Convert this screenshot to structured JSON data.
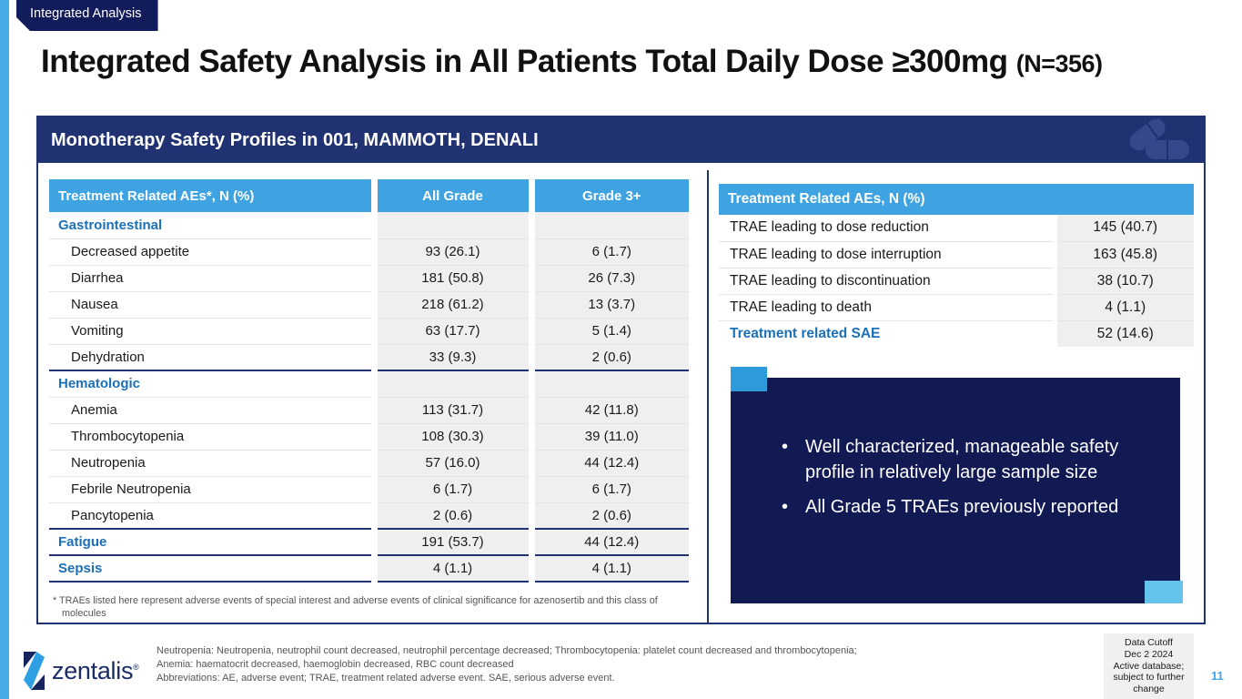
{
  "badge": {
    "label": "Integrated Analysis"
  },
  "title": {
    "main": "Integrated Safety Analysis in All Patients Total Daily Dose ≥300mg",
    "suffix": "(N=356)"
  },
  "panel": {
    "header": "Monotherapy Safety Profiles in 001, MAMMOTH, DENALI",
    "left_table": {
      "columns": [
        "Treatment Related AEs*, N (%)",
        "All Grade",
        "Grade 3+"
      ],
      "rows": [
        {
          "label": "Gastrointestinal",
          "all_grade": "",
          "grade3": "",
          "type": "category"
        },
        {
          "label": "Decreased appetite",
          "all_grade": "93 (26.1)",
          "grade3": "6 (1.7)"
        },
        {
          "label": "Diarrhea",
          "all_grade": "181 (50.8)",
          "grade3": "26 (7.3)"
        },
        {
          "label": "Nausea",
          "all_grade": "218 (61.2)",
          "grade3": "13 (3.7)"
        },
        {
          "label": "Vomiting",
          "all_grade": "63 (17.7)",
          "grade3": "5 (1.4)"
        },
        {
          "label": "Dehydration",
          "all_grade": "33 (9.3)",
          "grade3": "2 (0.6)",
          "rule_below": true
        },
        {
          "label": "Hematologic",
          "all_grade": "",
          "grade3": "",
          "type": "category"
        },
        {
          "label": "Anemia",
          "all_grade": "113 (31.7)",
          "grade3": "42 (11.8)"
        },
        {
          "label": "Thrombocytopenia",
          "all_grade": "108 (30.3)",
          "grade3": "39 (11.0)"
        },
        {
          "label": "Neutropenia",
          "all_grade": "57 (16.0)",
          "grade3": "44 (12.4)"
        },
        {
          "label": "Febrile Neutropenia",
          "all_grade": "6 (1.7)",
          "grade3": "6 (1.7)"
        },
        {
          "label": "Pancytopenia",
          "all_grade": "2 (0.6)",
          "grade3": "2 (0.6)",
          "rule_below": true
        },
        {
          "label": "Fatigue",
          "all_grade": "191 (53.7)",
          "grade3": "44 (12.4)",
          "type": "category",
          "rule_below": true
        },
        {
          "label": "Sepsis",
          "all_grade": "4 (1.1)",
          "grade3": "4 (1.1)",
          "type": "category",
          "rule_below": true
        }
      ],
      "footnote": "* TRAEs listed here represent adverse events of special interest and adverse events of clinical significance for azenosertib and this class of molecules"
    },
    "right_table": {
      "header": "Treatment Related AEs, N (%)",
      "rows": [
        {
          "label": "TRAE leading to dose reduction",
          "value": "145 (40.7)"
        },
        {
          "label": "TRAE leading to dose interruption",
          "value": "163 (45.8)"
        },
        {
          "label": "TRAE leading to discontinuation",
          "value": "38 (10.7)"
        },
        {
          "label": "TRAE leading to death",
          "value": "4 (1.1)"
        },
        {
          "label": "Treatment related SAE",
          "value": "52 (14.6)",
          "type": "highlight"
        }
      ]
    },
    "callout": {
      "bullets": [
        "Well characterized, manageable safety profile in relatively large sample size",
        "All Grade 5 TRAEs previously reported"
      ]
    }
  },
  "footer": {
    "logo_text": "zentalis",
    "logo_trademark": "®",
    "notes": [
      "Neutropenia: Neutropenia, neutrophil count decreased, neutrophil percentage decreased; Thrombocytopenia: platelet count decreased and thrombocytopenia;",
      "Anemia: haematocrit decreased, haemoglobin decreased, RBC count decreased",
      "Abbreviations: AE, adverse event; TRAE, treatment related adverse event. SAE, serious adverse event."
    ],
    "data_cutoff_lines": [
      "Data Cutoff",
      "Dec 2 2024",
      "Active database;",
      "subject to further",
      "change"
    ],
    "page_number": "11"
  },
  "icons": {
    "watermark": "pills-icon",
    "logo_mark": "zentalis-mark-icon"
  },
  "colors": {
    "accent_blue": "#3EA3E0",
    "navy": "#203271",
    "dark_navy": "#121A54",
    "category_blue": "#1C70B8",
    "stripe_blue": "#45ACE5",
    "callout_square_top": "#2D9BD9",
    "callout_square_bottom": "#66C4EC"
  }
}
